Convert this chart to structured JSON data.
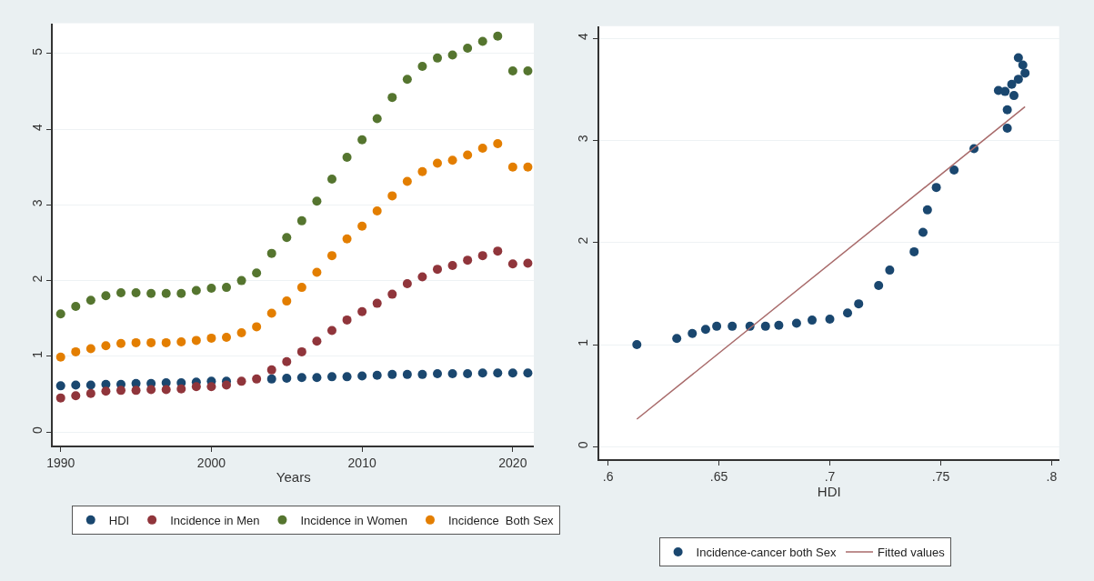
{
  "chart_data": [
    {
      "type": "scatter",
      "xlabel": "Years",
      "marker": "circle",
      "grid": "y",
      "legend": "bottom",
      "x": [
        1990,
        1991,
        1992,
        1993,
        1994,
        1995,
        1996,
        1997,
        1998,
        1999,
        2000,
        2001,
        2002,
        2003,
        2004,
        2005,
        2006,
        2007,
        2008,
        2009,
        2010,
        2011,
        2012,
        2013,
        2014,
        2015,
        2016,
        2017,
        2018,
        2019,
        2020,
        2021
      ],
      "xlim": [
        1989.5,
        2021.4
      ],
      "xticks": [
        1990,
        2000,
        2010,
        2020
      ],
      "ylim": [
        -0.18,
        5.4
      ],
      "yticks": [
        0,
        1,
        2,
        3,
        4,
        5
      ],
      "series": [
        {
          "name": "HDI",
          "color": "#1a476f",
          "values": [
            0.61,
            0.62,
            0.62,
            0.63,
            0.63,
            0.64,
            0.64,
            0.65,
            0.65,
            0.66,
            0.67,
            0.67,
            null,
            null,
            0.7,
            0.71,
            0.72,
            0.72,
            0.73,
            0.73,
            0.74,
            0.75,
            0.76,
            0.76,
            0.76,
            0.77,
            0.77,
            0.77,
            0.78,
            0.78,
            0.78,
            0.78
          ]
        },
        {
          "name": "Incidence in Men",
          "color": "#90353b",
          "values": [
            0.45,
            0.48,
            0.51,
            0.54,
            0.55,
            0.55,
            0.56,
            0.56,
            0.57,
            0.6,
            0.6,
            0.62,
            0.67,
            0.7,
            0.82,
            0.93,
            1.06,
            1.2,
            1.34,
            1.48,
            1.59,
            1.7,
            1.82,
            1.96,
            2.05,
            2.15,
            2.2,
            2.27,
            2.33,
            2.39,
            2.22,
            2.23
          ]
        },
        {
          "name": "Incidence in Women",
          "color": "#55752f",
          "values": [
            1.56,
            1.66,
            1.74,
            1.8,
            1.84,
            1.84,
            1.83,
            1.83,
            1.83,
            1.87,
            1.9,
            1.91,
            2.0,
            2.1,
            2.36,
            2.57,
            2.79,
            3.05,
            3.34,
            3.63,
            3.86,
            4.14,
            4.42,
            4.66,
            4.83,
            4.94,
            4.98,
            5.07,
            5.16,
            5.23,
            4.77,
            4.77
          ]
        },
        {
          "name": "Incidence  Both Sex",
          "color": "#e37e00",
          "values": [
            0.99,
            1.06,
            1.1,
            1.14,
            1.17,
            1.18,
            1.18,
            1.18,
            1.19,
            1.21,
            1.24,
            1.25,
            1.31,
            1.39,
            1.57,
            1.73,
            1.91,
            2.11,
            2.33,
            2.55,
            2.72,
            2.92,
            3.12,
            3.31,
            3.44,
            3.55,
            3.59,
            3.66,
            3.75,
            3.81,
            3.5,
            3.5
          ]
        }
      ]
    },
    {
      "type": "scatter",
      "xlabel": "HDI",
      "grid": "y",
      "legend": "bottom",
      "xlim": [
        0.596,
        0.8034
      ],
      "xticks": [
        {
          "value": 0.6,
          "label": ".6"
        },
        {
          "value": 0.65,
          "label": ".65"
        },
        {
          "value": 0.7,
          "label": ".7"
        },
        {
          "value": 0.75,
          "label": ".75"
        },
        {
          "value": 0.8,
          "label": ".8"
        }
      ],
      "ylim": [
        -0.12,
        4.12
      ],
      "yticks": [
        0,
        1,
        2,
        3,
        4
      ],
      "series": [
        {
          "name": "Incidence-cancer both Sex",
          "marker": "circle",
          "color": "#1a476f",
          "x": [
            0.613,
            0.631,
            0.638,
            0.644,
            0.649,
            0.656,
            0.664,
            0.671,
            0.677,
            0.685,
            0.692,
            0.7,
            0.708,
            0.713,
            0.722,
            0.727,
            0.738,
            0.742,
            0.744,
            0.748,
            0.756,
            0.765,
            0.776,
            0.779,
            0.78,
            0.78,
            0.782,
            0.783,
            0.785,
            0.785,
            0.787,
            0.788
          ],
          "values": [
            1.0,
            1.06,
            1.11,
            1.15,
            1.18,
            1.18,
            1.18,
            1.18,
            1.19,
            1.21,
            1.24,
            1.25,
            1.31,
            1.4,
            1.58,
            1.73,
            1.91,
            2.1,
            2.32,
            2.54,
            2.71,
            2.92,
            3.49,
            3.48,
            3.3,
            3.12,
            3.55,
            3.44,
            3.6,
            3.81,
            3.74,
            3.66
          ]
        },
        {
          "name": "Fitted values",
          "type": "line",
          "marker": "none",
          "line_style": "solid",
          "color": "#a86a6a",
          "x": [
            0.613,
            0.788
          ],
          "values": [
            0.27,
            3.33
          ]
        }
      ]
    }
  ]
}
